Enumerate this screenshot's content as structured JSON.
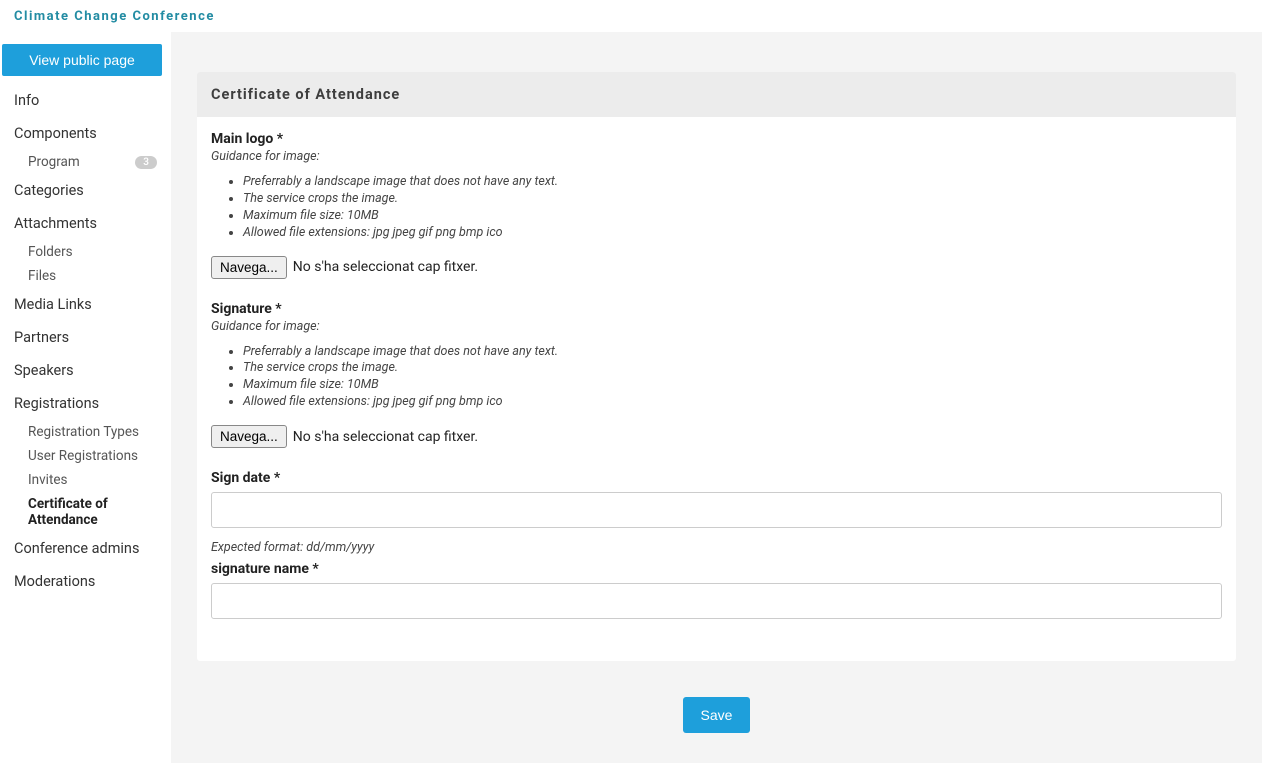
{
  "header": {
    "title": "Climate Change Conference"
  },
  "sidebar": {
    "view_public_label": "View public page",
    "items": {
      "info": "Info",
      "components": "Components",
      "program": "Program",
      "program_badge": "3",
      "categories": "Categories",
      "attachments": "Attachments",
      "folders": "Folders",
      "files": "Files",
      "media_links": "Media Links",
      "partners": "Partners",
      "speakers": "Speakers",
      "registrations": "Registrations",
      "registration_types": "Registration Types",
      "user_registrations": "User Registrations",
      "invites": "Invites",
      "certificate": "Certificate of Attendance",
      "conference_admins": "Conference admins",
      "moderations": "Moderations"
    }
  },
  "panel": {
    "title": "Certificate of Attendance",
    "main_logo": {
      "label": "Main logo",
      "required": "*",
      "guidance_label": "Guidance for image:",
      "guidance": [
        "Preferrably a landscape image that does not have any text.",
        "The service crops the image.",
        "Maximum file size: 10MB",
        "Allowed file extensions: jpg jpeg gif png bmp ico"
      ],
      "browse_label": "Navega...",
      "file_status": "No s'ha seleccionat cap fitxer."
    },
    "signature": {
      "label": "Signature",
      "required": "*",
      "guidance_label": "Guidance for image:",
      "guidance": [
        "Preferrably a landscape image that does not have any text.",
        "The service crops the image.",
        "Maximum file size: 10MB",
        "Allowed file extensions: jpg jpeg gif png bmp ico"
      ],
      "browse_label": "Navega...",
      "file_status": "No s'ha seleccionat cap fitxer."
    },
    "sign_date": {
      "label": "Sign date",
      "required": "*",
      "value": "",
      "format_hint": "Expected format: dd/mm/yyyy"
    },
    "signature_name": {
      "label": "signature name",
      "required": "*",
      "value": ""
    },
    "save_label": "Save"
  },
  "colors": {
    "accent": "#1e9fdb",
    "header_text": "#238ca3",
    "main_bg": "#f4f4f4",
    "panel_header_bg": "#ececec"
  }
}
